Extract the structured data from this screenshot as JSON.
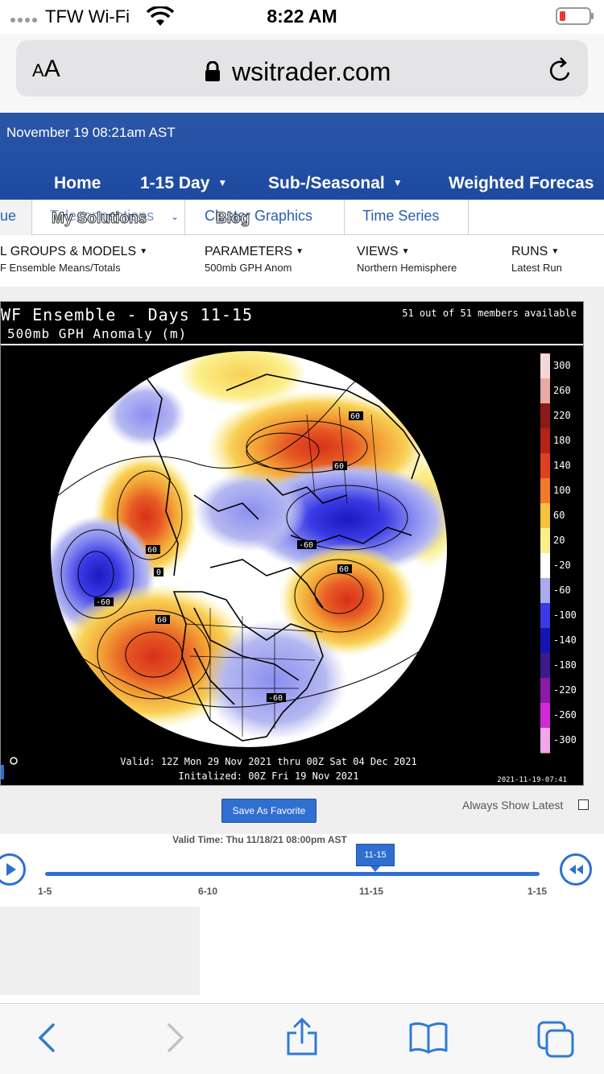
{
  "status_bar": {
    "carrier": "TFW Wi-Fi",
    "time": "8:22 AM",
    "wifi_icon": "wifi-icon",
    "battery_icon": "battery-low-icon"
  },
  "address_bar": {
    "text_size_label": "AA",
    "url": "wsitrader.com",
    "lock_icon": "lock-icon",
    "reload_icon": "reload-icon"
  },
  "site": {
    "datetime": "November 19 08:21am AST",
    "nav": [
      {
        "label": "Home",
        "has_caret": false
      },
      {
        "label": "1-15 Day",
        "has_caret": true
      },
      {
        "label": "Sub-/Seasonal",
        "has_caret": true
      },
      {
        "label": "Weighted Forecas",
        "has_caret": false
      }
    ],
    "tabs": [
      "ue",
      "Teleconnections",
      "Cluster Graphics",
      "Time Series"
    ],
    "overlay_menu": {
      "my_solutions": "My Solutions",
      "blog": "Blog"
    },
    "params": [
      {
        "header": "L GROUPS & MODELS",
        "value": "F Ensemble Means/Totals"
      },
      {
        "header": "PARAMETERS",
        "value": "500mb GPH Anom"
      },
      {
        "header": "VIEWS",
        "value": "Northern Hemisphere"
      },
      {
        "header": "RUNS",
        "value": "Latest Run"
      }
    ]
  },
  "map": {
    "title": "WF Ensemble - Days 11-15",
    "subtitle": "500mb GPH Anomaly (m)",
    "members": "51 out of 51 members available",
    "valid": "Valid: 12Z Mon 29 Nov 2021 thru 00Z Sat 04 Dec 2021",
    "initialized": "Initalized: 00Z Fri 19 Nov 2021",
    "stamp": "2021-11-19-07:41",
    "contour_labels": [
      "60",
      "60",
      "60",
      "-60",
      "60",
      "0",
      "-60",
      "60",
      "-60",
      "60"
    ],
    "scale": [
      {
        "label": "300",
        "color": "#f6d6d6"
      },
      {
        "label": "260",
        "color": "#e9a9a4"
      },
      {
        "label": "220",
        "color": "#8b1a1a"
      },
      {
        "label": "180",
        "color": "#b42318"
      },
      {
        "label": "140",
        "color": "#e04020"
      },
      {
        "label": "100",
        "color": "#f07a2a"
      },
      {
        "label": "60",
        "color": "#f7c240"
      },
      {
        "label": "20",
        "color": "#fbef8a"
      },
      {
        "label": "-20",
        "color": "#ffffff"
      },
      {
        "label": "-60",
        "color": "#a9acec"
      },
      {
        "label": "-100",
        "color": "#3a3ae6"
      },
      {
        "label": "-140",
        "color": "#1515b4"
      },
      {
        "label": "-180",
        "color": "#3d1a8a"
      },
      {
        "label": "-220",
        "color": "#8a1aa8"
      },
      {
        "label": "-260",
        "color": "#d02ad6"
      },
      {
        "label": "-300",
        "color": "#f0a6e8"
      }
    ]
  },
  "controls": {
    "save_favorite": "Save As Favorite",
    "always_show_latest": "Always Show Latest",
    "valid_time": "Valid Time: Thu 11/18/21 08:00pm AST",
    "slider_value": "11-15",
    "ticks": [
      "1-5",
      "6-10",
      "11-15",
      "1-15"
    ],
    "play_icon": "play-icon",
    "rewind_icon": "rewind-icon"
  },
  "toolbar": {
    "icons": [
      "back-icon",
      "forward-icon",
      "share-icon",
      "bookmarks-icon",
      "tabs-icon"
    ]
  },
  "colors": {
    "brand_blue": "#1d4aa0",
    "link_blue": "#2a5db0",
    "ios_blue": "#2f7ad6"
  }
}
